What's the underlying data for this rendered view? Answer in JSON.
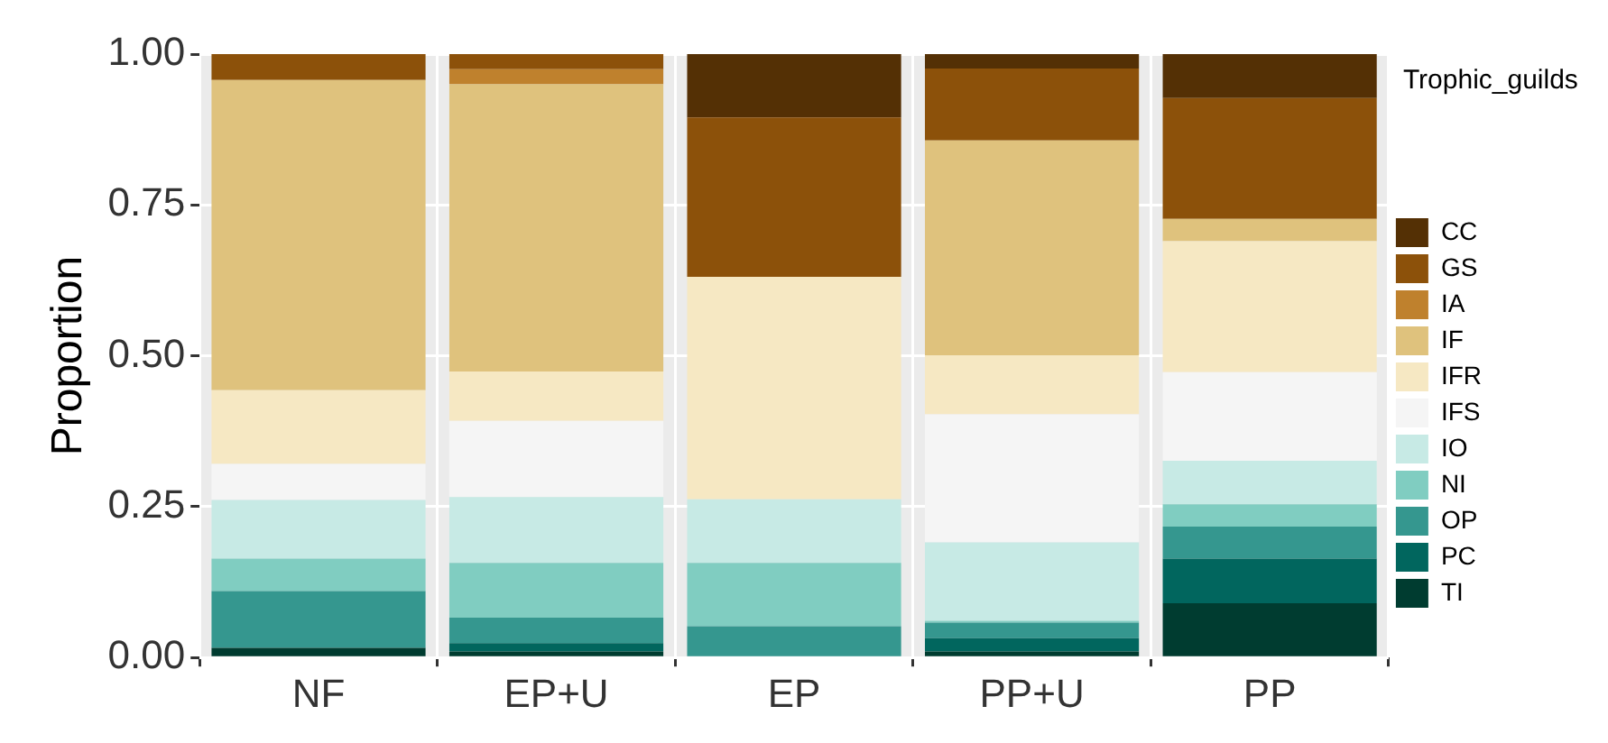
{
  "chart_data": {
    "type": "bar",
    "stacked": true,
    "ylabel": "Proportion",
    "legend_title": "Trophic_guilds",
    "legend": "right",
    "grid": true,
    "categories": [
      "NF",
      "EP+U",
      "EP",
      "PP+U",
      "PP"
    ],
    "ylim": [
      0,
      1
    ],
    "yticks": [
      {
        "value": 0,
        "label": "0.00"
      },
      {
        "value": 0.25,
        "label": "0.25"
      },
      {
        "value": 0.5,
        "label": "0.50"
      },
      {
        "value": 0.75,
        "label": "0.75"
      },
      {
        "value": 1,
        "label": "1.00"
      }
    ],
    "series": [
      {
        "name": "TI",
        "color": "#003c30",
        "values": [
          0.016,
          0.01,
          0,
          0.01,
          0.09
        ]
      },
      {
        "name": "PC",
        "color": "#01665e",
        "values": [
          0,
          0.014,
          0,
          0.022,
          0.074
        ]
      },
      {
        "name": "OP",
        "color": "#35978f",
        "values": [
          0.094,
          0.042,
          0.052,
          0.026,
          0.053
        ]
      },
      {
        "name": "NI",
        "color": "#80cdc1",
        "values": [
          0.054,
          0.091,
          0.105,
          0.003,
          0.037
        ]
      },
      {
        "name": "IO",
        "color": "#c7eae5",
        "values": [
          0.097,
          0.109,
          0.105,
          0.13,
          0.072
        ]
      },
      {
        "name": "IFS",
        "color": "#f5f5f5",
        "values": [
          0.06,
          0.126,
          0,
          0.212,
          0.147
        ]
      },
      {
        "name": "IFR",
        "color": "#f6e8c3",
        "values": [
          0.122,
          0.082,
          0.369,
          0.098,
          0.217
        ]
      },
      {
        "name": "IF",
        "color": "#dfc27d",
        "values": [
          0.514,
          0.476,
          0,
          0.356,
          0.037
        ]
      },
      {
        "name": "IA",
        "color": "#bf812d",
        "values": [
          0,
          0.025,
          0,
          0,
          0
        ]
      },
      {
        "name": "GS",
        "color": "#8c510a",
        "values": [
          0.043,
          0.025,
          0.264,
          0.119,
          0.2
        ]
      },
      {
        "name": "CC",
        "color": "#543005",
        "values": [
          0,
          0,
          0.105,
          0.024,
          0.073
        ]
      }
    ]
  }
}
